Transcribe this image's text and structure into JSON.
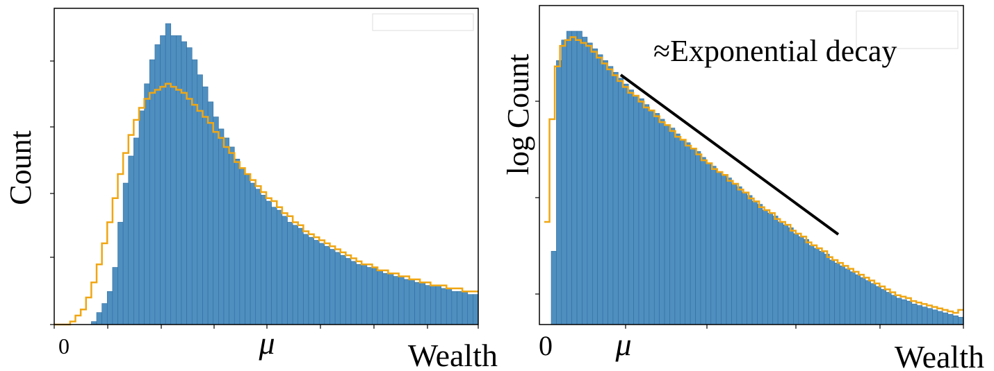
{
  "colors": {
    "bars": "#4f8fc0",
    "bar_edge": "#2f6d9e",
    "step": "#f0a612",
    "fit_line": "#000000"
  },
  "chart_data": [
    {
      "type": "bar",
      "overlay": "step",
      "ylabel": "Count",
      "xlabel": "Wealth",
      "x_tick_labels": [
        "0",
        "μ"
      ],
      "legend": "top-right (empty frame)",
      "grid": false,
      "bins": 80,
      "values": [
        0,
        0,
        0,
        0,
        0,
        0,
        0,
        0.01,
        0.04,
        0.07,
        0.11,
        0.19,
        0.34,
        0.47,
        0.56,
        0.62,
        0.71,
        0.8,
        0.88,
        0.93,
        0.96,
        1,
        0.96,
        0.96,
        0.94,
        0.92,
        0.88,
        0.83,
        0.79,
        0.74,
        0.69,
        0.65,
        0.62,
        0.59,
        0.55,
        0.52,
        0.5,
        0.47,
        0.45,
        0.43,
        0.41,
        0.39,
        0.38,
        0.36,
        0.34,
        0.33,
        0.32,
        0.3,
        0.29,
        0.28,
        0.27,
        0.26,
        0.25,
        0.24,
        0.23,
        0.22,
        0.21,
        0.2,
        0.2,
        0.19,
        0.19,
        0.18,
        0.17,
        0.17,
        0.16,
        0.16,
        0.15,
        0.15,
        0.14,
        0.14,
        0.13,
        0.13,
        0.13,
        0.12,
        0.12,
        0.11,
        0.11,
        0.11,
        0.1,
        0.1
      ],
      "step_values": [
        0,
        0,
        0,
        0.01,
        0.03,
        0.05,
        0.09,
        0.14,
        0.2,
        0.27,
        0.34,
        0.42,
        0.5,
        0.57,
        0.63,
        0.68,
        0.72,
        0.75,
        0.77,
        0.78,
        0.79,
        0.8,
        0.79,
        0.78,
        0.77,
        0.75,
        0.73,
        0.71,
        0.69,
        0.67,
        0.64,
        0.62,
        0.59,
        0.57,
        0.54,
        0.52,
        0.5,
        0.48,
        0.46,
        0.44,
        0.42,
        0.41,
        0.39,
        0.37,
        0.36,
        0.34,
        0.33,
        0.31,
        0.3,
        0.29,
        0.28,
        0.27,
        0.26,
        0.25,
        0.24,
        0.23,
        0.22,
        0.21,
        0.2,
        0.2,
        0.19,
        0.18,
        0.18,
        0.17,
        0.17,
        0.16,
        0.16,
        0.15,
        0.15,
        0.14,
        0.14,
        0.13,
        0.13,
        0.13,
        0.12,
        0.12,
        0.12,
        0.11,
        0.11,
        0.11
      ]
    },
    {
      "type": "bar",
      "overlay": "step",
      "ylabel": "log Count",
      "xlabel": "Wealth",
      "x_tick_labels": [
        "0",
        "μ"
      ],
      "yscale": "log",
      "legend": "top-right (empty frame)",
      "grid": false,
      "annotation": "≈Exponential decay",
      "bins": 80,
      "values": [
        0.25,
        0.9,
        0.97,
        1,
        1,
        1,
        0.98,
        0.96,
        0.94,
        0.92,
        0.9,
        0.88,
        0.86,
        0.84,
        0.82,
        0.8,
        0.78,
        0.77,
        0.75,
        0.73,
        0.72,
        0.7,
        0.68,
        0.67,
        0.65,
        0.63,
        0.62,
        0.6,
        0.59,
        0.57,
        0.55,
        0.54,
        0.52,
        0.51,
        0.5,
        0.48,
        0.47,
        0.45,
        0.44,
        0.42,
        0.41,
        0.39,
        0.38,
        0.37,
        0.35,
        0.34,
        0.33,
        0.31,
        0.3,
        0.29,
        0.27,
        0.26,
        0.25,
        0.24,
        0.22,
        0.21,
        0.2,
        0.19,
        0.18,
        0.17,
        0.16,
        0.15,
        0.14,
        0.13,
        0.12,
        0.11,
        0.1,
        0.09,
        0.085,
        0.08,
        0.07,
        0.065,
        0.06,
        0.055,
        0.05,
        0.045,
        0.04,
        0.035,
        0.03,
        0.025
      ],
      "step_values": [
        0.35,
        0.7,
        0.88,
        0.95,
        0.97,
        0.98,
        0.97,
        0.96,
        0.95,
        0.93,
        0.91,
        0.89,
        0.87,
        0.85,
        0.83,
        0.81,
        0.79,
        0.78,
        0.76,
        0.74,
        0.73,
        0.71,
        0.69,
        0.68,
        0.66,
        0.64,
        0.63,
        0.61,
        0.6,
        0.58,
        0.56,
        0.55,
        0.53,
        0.52,
        0.51,
        0.49,
        0.48,
        0.46,
        0.45,
        0.43,
        0.42,
        0.4,
        0.39,
        0.38,
        0.36,
        0.35,
        0.34,
        0.32,
        0.31,
        0.3,
        0.28,
        0.27,
        0.26,
        0.25,
        0.23,
        0.22,
        0.21,
        0.2,
        0.19,
        0.18,
        0.17,
        0.16,
        0.15,
        0.14,
        0.13,
        0.12,
        0.11,
        0.1,
        0.095,
        0.09,
        0.08,
        0.075,
        0.07,
        0.065,
        0.06,
        0.055,
        0.05,
        0.045,
        0.04,
        0.05
      ]
    }
  ]
}
